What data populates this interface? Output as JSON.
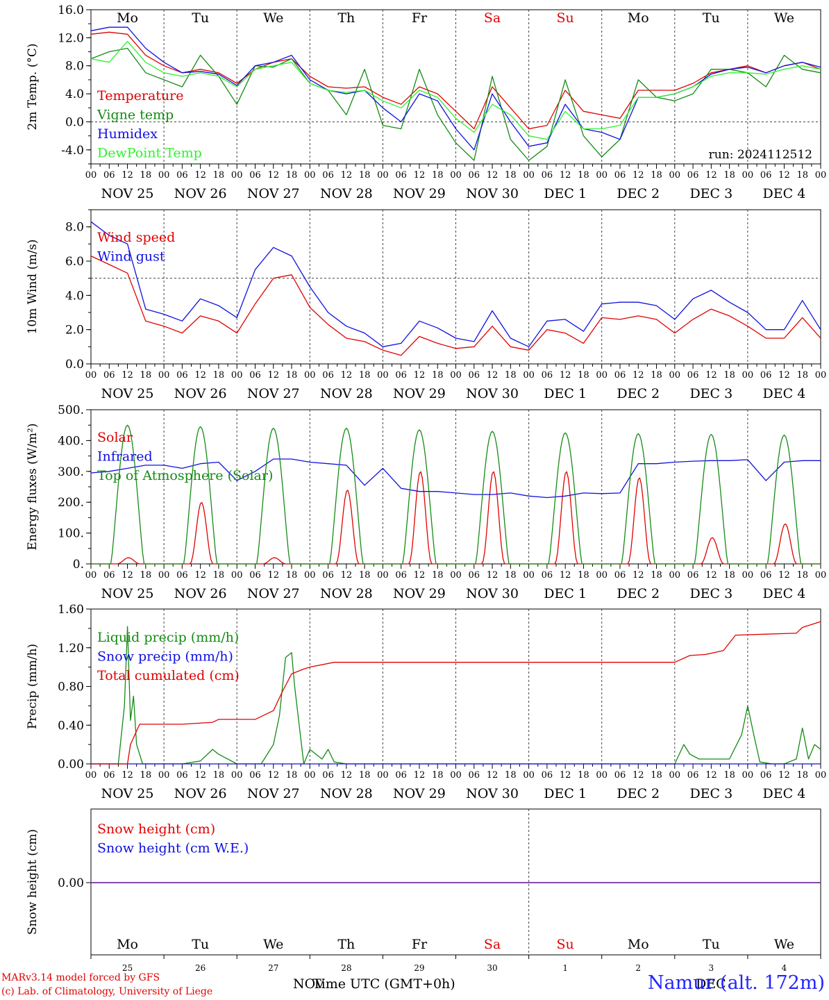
{
  "station": "Namur (alt. 172m)",
  "credits": [
    "MARv3.14 model forced by GFS",
    "(c) Lab. of Climatology, University of Liege"
  ],
  "x_axis_label": "Time UTC (GMT+0h)",
  "run": "run: 2024112512",
  "months_bottom": [
    "NOV",
    "DEC"
  ],
  "colors": {
    "red": "#e00000",
    "green": "#158a15",
    "blue": "#1010e0",
    "lightgreen": "#30f030",
    "purple": "#7030a0"
  },
  "chart_data": [
    {
      "type": "line",
      "ylabel": "2m Temp. (°C)",
      "ylim": [
        -6,
        16
      ],
      "yticks": [
        "16.0",
        "12.0",
        "8.0",
        "4.0",
        "0.0",
        "-4.0"
      ],
      "ytick_values": [
        16,
        12,
        8,
        4,
        0,
        -4
      ],
      "zero_dashed": 0,
      "days": [
        "Mo",
        "Tu",
        "We",
        "Th",
        "Fr",
        "Sa",
        "Su",
        "Mo",
        "Tu",
        "We"
      ],
      "day_colors": [
        "black",
        "black",
        "black",
        "black",
        "black",
        "red",
        "red",
        "black",
        "black",
        "black"
      ],
      "date_labels": [
        "NOV 25",
        "NOV 26",
        "NOV 27",
        "NOV 28",
        "NOV 29",
        "NOV 30",
        "DEC  1",
        "DEC  2",
        "DEC  3",
        "DEC  4"
      ],
      "hour_labels": [
        "00",
        "06",
        "12",
        "18"
      ],
      "x": [
        0,
        6,
        12,
        18,
        24,
        30,
        36,
        42,
        48,
        54,
        60,
        66,
        72,
        78,
        84,
        90,
        96,
        102,
        108,
        114,
        120,
        126,
        132,
        138,
        144,
        150,
        156,
        162,
        168,
        174,
        180,
        186,
        192,
        198,
        204,
        210,
        216,
        222,
        228,
        234,
        240
      ],
      "series": [
        {
          "name": "Temperature",
          "color": "#e00000",
          "values": [
            12.5,
            12.8,
            12.5,
            9.5,
            8.0,
            7.0,
            7.5,
            7.0,
            5.5,
            7.5,
            8.5,
            9.0,
            6.5,
            5.0,
            4.8,
            5.0,
            3.5,
            2.5,
            5.0,
            4.0,
            1.5,
            -1.0,
            5.0,
            2.0,
            -1.0,
            -0.5,
            4.5,
            1.5,
            1.0,
            0.5,
            4.5,
            4.5,
            4.5,
            5.5,
            7.0,
            7.5,
            8.0,
            7.0,
            8.0,
            8.5,
            7.5
          ]
        },
        {
          "name": "Vigne temp",
          "color": "#158a15",
          "values": [
            9.0,
            10.0,
            10.5,
            7.0,
            6.0,
            5.0,
            9.5,
            6.5,
            2.5,
            8.0,
            7.8,
            9.0,
            5.5,
            4.5,
            1.0,
            7.5,
            -0.5,
            -1.0,
            7.5,
            1.0,
            -3.0,
            -5.5,
            6.5,
            -2.5,
            -5.5,
            -3.5,
            6.0,
            -2.0,
            -5.0,
            -2.5,
            6.0,
            3.5,
            3.0,
            4.0,
            7.5,
            7.5,
            7.0,
            5.0,
            9.5,
            7.5,
            7.0
          ]
        },
        {
          "name": "Humidex",
          "color": "#1010e0",
          "values": [
            13.0,
            13.5,
            13.5,
            10.5,
            8.5,
            7.0,
            7.2,
            6.8,
            5.2,
            8.0,
            8.5,
            9.5,
            6.0,
            4.5,
            4.0,
            4.5,
            2.0,
            0.0,
            4.0,
            3.0,
            -1.0,
            -4.0,
            4.0,
            0.0,
            -3.5,
            -3.0,
            2.5,
            -1.0,
            -1.5,
            -2.5,
            3.5,
            3.5,
            4.0,
            5.0,
            6.8,
            7.5,
            7.8,
            7.0,
            8.0,
            8.5,
            7.8
          ]
        },
        {
          "name": "DewPoint Temp",
          "color": "#30f030",
          "values": [
            9.0,
            8.5,
            11.5,
            8.5,
            7.0,
            6.5,
            7.0,
            6.5,
            5.0,
            7.5,
            8.0,
            8.5,
            5.5,
            4.5,
            4.2,
            4.5,
            3.0,
            2.0,
            4.5,
            3.5,
            0.5,
            -1.5,
            2.5,
            1.0,
            -2.0,
            -2.5,
            1.5,
            -1.0,
            -1.0,
            -0.5,
            3.5,
            3.5,
            4.0,
            5.0,
            6.5,
            7.0,
            7.0,
            6.8,
            7.5,
            8.0,
            7.5
          ]
        }
      ]
    },
    {
      "type": "line",
      "ylabel": "10m Wind (m/s)",
      "ylim": [
        0,
        9
      ],
      "yticks": [
        "8.0",
        "6.0",
        "4.0",
        "2.0",
        "0.0"
      ],
      "ytick_values": [
        8,
        6,
        4,
        2,
        0
      ],
      "ref_dashed": 5,
      "date_labels": [
        "NOV 25",
        "NOV 26",
        "NOV 27",
        "NOV 28",
        "NOV 29",
        "NOV 30",
        "DEC  1",
        "DEC  2",
        "DEC  3",
        "DEC  4"
      ],
      "hour_labels": [
        "00",
        "06",
        "12",
        "18"
      ],
      "x": [
        0,
        6,
        12,
        18,
        24,
        30,
        36,
        42,
        48,
        54,
        60,
        66,
        72,
        78,
        84,
        90,
        96,
        102,
        108,
        114,
        120,
        126,
        132,
        138,
        144,
        150,
        156,
        162,
        168,
        174,
        180,
        186,
        192,
        198,
        204,
        210,
        216,
        222,
        228,
        234,
        240
      ],
      "series": [
        {
          "name": "Wind speed",
          "color": "#e00000",
          "values": [
            6.3,
            5.8,
            5.3,
            2.5,
            2.2,
            1.8,
            2.8,
            2.5,
            1.8,
            3.5,
            5.0,
            5.2,
            3.3,
            2.3,
            1.5,
            1.3,
            0.8,
            0.5,
            1.6,
            1.2,
            0.9,
            1.0,
            2.2,
            1.0,
            0.8,
            2.0,
            1.8,
            1.2,
            2.7,
            2.6,
            2.8,
            2.6,
            1.8,
            2.6,
            3.2,
            2.8,
            2.2,
            1.5,
            1.5,
            2.7,
            1.5
          ]
        },
        {
          "name": "Wind gust",
          "color": "#1010e0",
          "values": [
            8.3,
            7.5,
            7.0,
            3.2,
            2.9,
            2.5,
            3.8,
            3.4,
            2.7,
            5.5,
            6.8,
            6.3,
            4.5,
            3.0,
            2.2,
            1.8,
            1.0,
            1.2,
            2.5,
            2.1,
            1.5,
            1.3,
            3.1,
            1.5,
            1.0,
            2.5,
            2.6,
            1.9,
            3.5,
            3.6,
            3.6,
            3.4,
            2.6,
            3.8,
            4.3,
            3.6,
            3.0,
            2.0,
            2.0,
            3.7,
            2.0
          ]
        }
      ]
    },
    {
      "type": "line",
      "ylabel": "Energy fluxes (W/m²)",
      "ylim": [
        0,
        500
      ],
      "yticks": [
        "500.",
        "400.",
        "300.",
        "200.",
        "100.",
        "0."
      ],
      "ytick_values": [
        500,
        400,
        300,
        200,
        100,
        0
      ],
      "date_labels": [
        "NOV 25",
        "NOV 26",
        "NOV 27",
        "NOV 28",
        "NOV 29",
        "NOV 30",
        "DEC  1",
        "DEC  2",
        "DEC  3",
        "DEC  4"
      ],
      "hour_labels": [
        "00",
        "06",
        "12",
        "18"
      ],
      "series": [
        {
          "name": "Solar",
          "color": "#e00000",
          "day_peaks": [
            20,
            200,
            20,
            240,
            300,
            300,
            300,
            280,
            85,
            130
          ]
        },
        {
          "name": "Infrared",
          "color": "#1010e0",
          "x": [
            0,
            6,
            12,
            18,
            24,
            30,
            36,
            42,
            48,
            54,
            60,
            66,
            72,
            78,
            84,
            90,
            96,
            102,
            108,
            114,
            120,
            126,
            132,
            138,
            144,
            150,
            156,
            162,
            168,
            174,
            180,
            186,
            192,
            198,
            204,
            210,
            216,
            222,
            228,
            234,
            240
          ],
          "values": [
            295,
            300,
            310,
            320,
            320,
            310,
            325,
            330,
            270,
            300,
            340,
            340,
            330,
            325,
            320,
            255,
            310,
            245,
            235,
            235,
            230,
            225,
            225,
            230,
            220,
            215,
            220,
            230,
            228,
            230,
            325,
            325,
            330,
            333,
            335,
            335,
            338,
            270,
            330,
            335,
            335
          ]
        },
        {
          "name": "Top of Atmosphere (Solar)",
          "color": "#158a15",
          "day_peaks": [
            450,
            445,
            440,
            440,
            435,
            430,
            425,
            422,
            420,
            418
          ]
        }
      ]
    },
    {
      "type": "line",
      "ylabel": "Precip (mm/h)",
      "ylim": [
        0,
        1.6
      ],
      "yticks": [
        "1.60",
        "1.20",
        "0.80",
        "0.40",
        "0.00"
      ],
      "ytick_values": [
        1.6,
        1.2,
        0.8,
        0.4,
        0
      ],
      "date_labels": [
        "NOV 25",
        "NOV 26",
        "NOV 27",
        "NOV 28",
        "NOV 29",
        "NOV 30",
        "DEC  1",
        "DEC  2",
        "DEC  3",
        "DEC  4"
      ],
      "hour_labels": [
        "00",
        "06",
        "12",
        "18"
      ],
      "series": [
        {
          "name": "Liquid precip (mm/h)",
          "color": "#158a15",
          "x": [
            0,
            9,
            11,
            12,
            13,
            14,
            15,
            17,
            20,
            30,
            36,
            40,
            42,
            48,
            56,
            60,
            62,
            64,
            66,
            67,
            70,
            72,
            74,
            76,
            78,
            80,
            84,
            96,
            192,
            195,
            197,
            200,
            210,
            214,
            216,
            218,
            220,
            224,
            228,
            232,
            234,
            236,
            238,
            240
          ],
          "values": [
            0,
            0,
            0.6,
            1.42,
            0.45,
            0.7,
            0.2,
            0,
            0,
            0,
            0.03,
            0.15,
            0.1,
            0,
            0,
            0.2,
            0.5,
            1.1,
            1.15,
            0.8,
            0,
            0.15,
            0.1,
            0.05,
            0.15,
            0.02,
            0,
            0,
            0,
            0.2,
            0.1,
            0.05,
            0.05,
            0.3,
            0.6,
            0.3,
            0.02,
            0,
            0,
            0.05,
            0.37,
            0.05,
            0.2,
            0.15
          ]
        },
        {
          "name": "Snow precip (mm/h)",
          "color": "#1010e0",
          "x": [
            0,
            240
          ],
          "values": [
            0,
            0
          ]
        },
        {
          "name": "Total cumulated (cm)",
          "color": "#e00000",
          "x": [
            0,
            12,
            13,
            16,
            30,
            40,
            42,
            54,
            60,
            63,
            66,
            70,
            72,
            80,
            192,
            197,
            202,
            208,
            212,
            222,
            232,
            234,
            240
          ],
          "values": [
            0,
            0,
            0.2,
            0.41,
            0.41,
            0.43,
            0.46,
            0.46,
            0.55,
            0.75,
            0.93,
            0.98,
            1.0,
            1.05,
            1.05,
            1.12,
            1.13,
            1.17,
            1.33,
            1.34,
            1.35,
            1.41,
            1.47
          ]
        }
      ]
    },
    {
      "type": "line",
      "ylabel": "Snow height (cm)",
      "yticks": [
        "0.00"
      ],
      "days": [
        "Mo",
        "Tu",
        "We",
        "Th",
        "Fr",
        "Sa",
        "Su",
        "Mo",
        "Tu",
        "We"
      ],
      "day_colors": [
        "black",
        "black",
        "black",
        "black",
        "black",
        "red",
        "red",
        "black",
        "black",
        "black"
      ],
      "day_numbers": [
        "25",
        "26",
        "27",
        "28",
        "29",
        "30",
        "1",
        "2",
        "3",
        "4"
      ],
      "series": [
        {
          "name": "Snow height (cm)",
          "color": "#e00000",
          "x": [
            0,
            240
          ],
          "values": [
            0,
            0
          ]
        },
        {
          "name": "Snow height (cm W.E.)",
          "color": "#1010e0",
          "x": [
            0,
            240
          ],
          "values": [
            0,
            0
          ]
        }
      ]
    }
  ]
}
